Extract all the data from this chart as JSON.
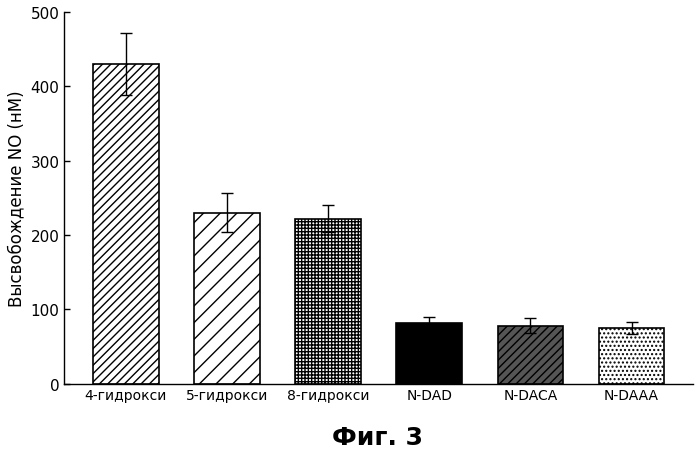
{
  "categories": [
    "4-гидрокси",
    "5-гидрокси",
    "8-гидрокси",
    "N-DAD",
    "N-DACA",
    "N-DAAA"
  ],
  "values": [
    430,
    230,
    222,
    82,
    78,
    75
  ],
  "errors": [
    42,
    26,
    18,
    7,
    10,
    8
  ],
  "ylabel": "Высвобождение NO (нМ)",
  "caption": "Фиг. 3",
  "ylim": [
    0,
    500
  ],
  "yticks": [
    0,
    100,
    200,
    300,
    400,
    500
  ],
  "background_color": "#ffffff",
  "bar_edgecolors": [
    "black",
    "black",
    "black",
    "black",
    "black",
    "black"
  ],
  "bar_width": 0.65,
  "caption_fontsize": 18,
  "ylabel_fontsize": 12,
  "tick_fontsize": 11,
  "xlabel_fontsize": 10
}
